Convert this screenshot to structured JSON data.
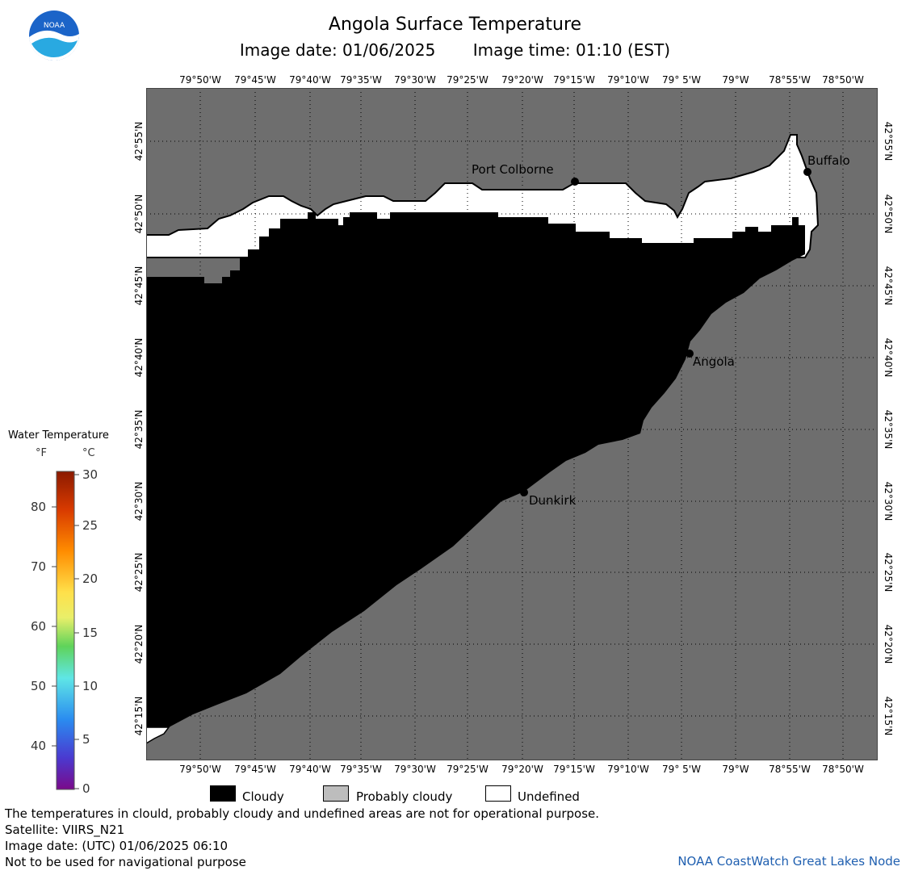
{
  "title": "Angola Surface Temperature",
  "image_date_label": "Image date: 01/06/2025",
  "image_time_label": "Image time: 01:10 (EST)",
  "logo_text": "NOAA",
  "longitude_labels": [
    "79°50'W",
    "79°45'W",
    "79°40'W",
    "79°35'W",
    "79°30'W",
    "79°25'W",
    "79°20'W",
    "79°15'W",
    "79°10'W",
    "79° 5'W",
    "79°W",
    "78°55'W",
    "78°50'W"
  ],
  "latitude_labels": [
    "42°55'N",
    "42°50'N",
    "42°45'N",
    "42°40'N",
    "42°35'N",
    "42°30'N",
    "42°25'N",
    "42°20'N",
    "42°15'N"
  ],
  "cities": [
    {
      "name": "Port Colborne"
    },
    {
      "name": "Buffalo"
    },
    {
      "name": "Angola"
    },
    {
      "name": "Dunkirk"
    }
  ],
  "legend": {
    "title": "Water Temperature",
    "unit_f": "°F",
    "unit_c": "°C",
    "f_ticks": [
      "80",
      "70",
      "60",
      "50",
      "40"
    ],
    "c_ticks": [
      "30",
      "25",
      "20",
      "15",
      "10",
      "5",
      "0"
    ]
  },
  "key": [
    {
      "label": "Cloudy",
      "color": "#000000"
    },
    {
      "label": "Probably cloudy",
      "color": "#bdbdbd"
    },
    {
      "label": "Undefined",
      "color": "#ffffff"
    }
  ],
  "footer": {
    "disclaimer": "The temperatures in clould, probably cloudy and undefined areas are not for operational purpose.",
    "satellite": "Satellite: VIIRS_N21",
    "utc_date": "Image date: (UTC) 01/06/2025  06:10",
    "navigation": "Not to be used for navigational purpose",
    "credit": "NOAA CoastWatch Great Lakes Node"
  },
  "colors": {
    "land": "#6e6e6e",
    "cloud": "#000000",
    "undefined": "#ffffff"
  }
}
